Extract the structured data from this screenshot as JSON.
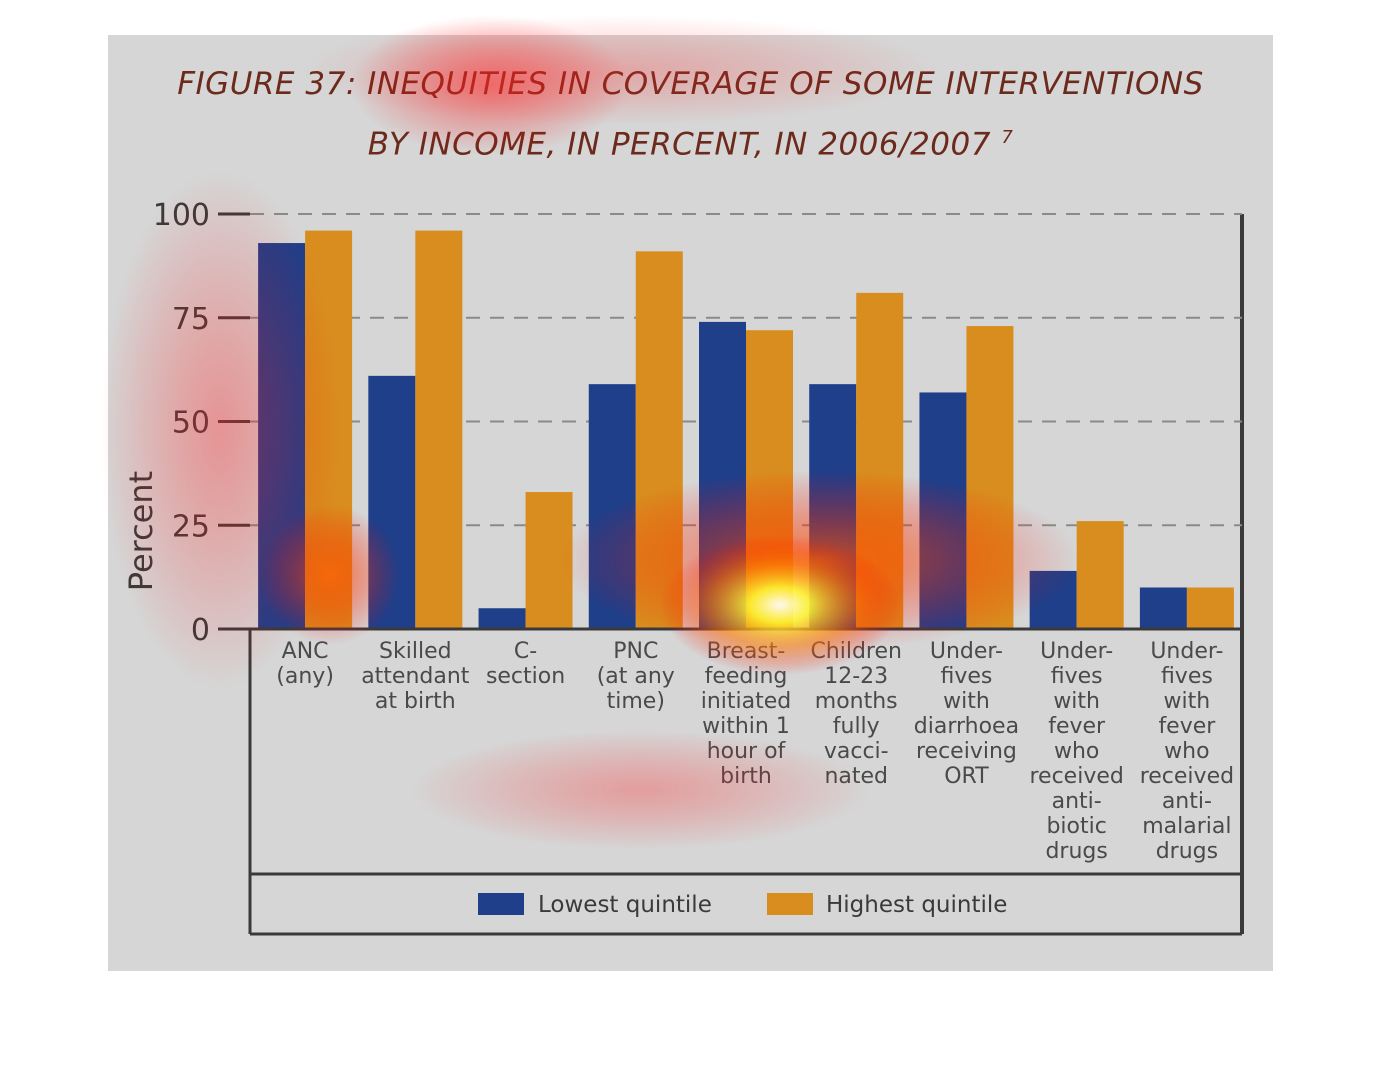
{
  "title_line1": "FIGURE 37: INEQUITIES IN COVERAGE OF SOME INTERVENTIONS",
  "title_line2": "BY INCOME, IN PERCENT, IN 2006/2007",
  "title_footnote": "7",
  "colors": {
    "lowest": "#1f3f8a",
    "highest": "#d98d1e",
    "title": "#6b2a1c",
    "axis": "#444444",
    "panel": "#d6d6d6"
  },
  "chart_data": {
    "type": "bar",
    "ylabel": "Percent",
    "xlabel": "",
    "ylim": [
      0,
      100
    ],
    "yticks": [
      0,
      25,
      50,
      75,
      100
    ],
    "grid": "dashed horizontal",
    "legend_position": "bottom",
    "categories": [
      [
        "ANC",
        "(any)"
      ],
      [
        "Skilled",
        "attendant",
        "at birth"
      ],
      [
        "C-",
        "section"
      ],
      [
        "PNC",
        "(at any",
        "time)"
      ],
      [
        "Breast-",
        "feeding",
        "initiated",
        "within 1",
        "hour of",
        "birth"
      ],
      [
        "Children",
        "12-23",
        "months",
        "fully",
        "vacci-",
        "nated"
      ],
      [
        "Under-",
        "fives",
        "with",
        "diarrhoea",
        "receiving",
        "ORT"
      ],
      [
        "Under-",
        "fives",
        "with",
        "fever",
        "who",
        "received",
        "anti-",
        "biotic",
        "drugs"
      ],
      [
        "Under-",
        "fives",
        "with",
        "fever",
        "who",
        "received",
        "anti-",
        "malarial",
        "drugs"
      ]
    ],
    "series": [
      {
        "name": "Lowest quintile",
        "values": [
          93,
          61,
          5,
          59,
          74,
          59,
          57,
          14,
          10
        ]
      },
      {
        "name": "Highest quintile",
        "values": [
          96,
          96,
          33,
          91,
          72,
          81,
          73,
          26,
          10
        ]
      }
    ]
  }
}
